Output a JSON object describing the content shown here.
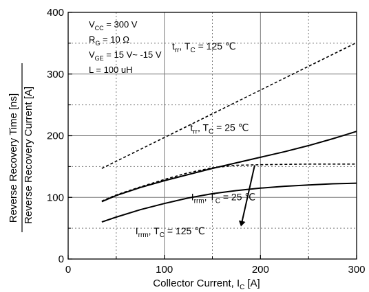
{
  "chart_data": {
    "type": "line",
    "xlabel": "Collector Current, I",
    "xlabel_sub": "C",
    "xlabel_unit": "[A]",
    "ylabel_top": "Reverse Recovery Time [ns]",
    "ylabel_bottom": "Reverse Recovery Current [A]",
    "xlim": [
      0,
      300
    ],
    "ylim": [
      0,
      400
    ],
    "x_ticks": [
      "0",
      "100",
      "200",
      "300"
    ],
    "y_ticks": [
      "0",
      "100",
      "200",
      "300",
      "400"
    ],
    "grid": true,
    "conditions": [
      {
        "main": "V",
        "sub": "CC",
        "rest": " = 300 V"
      },
      {
        "main": "R",
        "sub": "G",
        "rest": " = 10 Ω"
      },
      {
        "main": "V",
        "sub": "GE",
        "rest": " = 15 V~ -15 V"
      },
      {
        "main": "L = 100 uH",
        "sub": "",
        "rest": ""
      }
    ],
    "series": [
      {
        "name": "trr, TC = 125 ℃",
        "style": "dashed",
        "x": [
          35,
          300
        ],
        "y": [
          147,
          351
        ]
      },
      {
        "name": "trr, TC = 25 ℃",
        "style": "solid",
        "x": [
          35,
          50,
          75,
          100,
          125,
          150,
          175,
          200,
          225,
          250,
          275,
          300
        ],
        "y": [
          93,
          103,
          116,
          127,
          137,
          147,
          156,
          165,
          174,
          184,
          195,
          207
        ]
      },
      {
        "name": "Irrm, TC = 125 ℃",
        "style": "dashed",
        "x": [
          35,
          50,
          75,
          100,
          125,
          150,
          175,
          200,
          250,
          300
        ],
        "y": [
          94,
          104,
          117,
          129,
          140,
          148,
          152,
          153,
          154,
          154
        ]
      },
      {
        "name": "Irrm, TC = 25 ℃",
        "style": "solid",
        "x": [
          35,
          50,
          75,
          100,
          125,
          150,
          175,
          200,
          225,
          250,
          275,
          300
        ],
        "y": [
          60,
          68,
          80,
          90,
          99,
          106,
          111,
          115,
          118,
          120,
          122,
          123
        ]
      }
    ],
    "annotations": [
      {
        "main": "t",
        "sub": "rr",
        "mid": ", T",
        "sub2": "C",
        "rest": " = 125 ℃",
        "x": 108,
        "y": 340
      },
      {
        "main": "t",
        "sub": "rr",
        "mid": ", T",
        "sub2": "C",
        "rest": " = 25 ℃",
        "x": 127,
        "y": 208
      },
      {
        "main": "I",
        "sub": "rrm",
        "mid": ", T",
        "sub2": "C",
        "rest": " = 25 ℃",
        "x": 128,
        "y": 95
      },
      {
        "main": "I",
        "sub": "rrm",
        "mid": ", T",
        "sub2": "C",
        "rest": " = 125 ℃",
        "x": 70,
        "y": 40
      }
    ],
    "arrow": {
      "from": [
        194,
        152
      ],
      "to": [
        180,
        55
      ]
    }
  }
}
